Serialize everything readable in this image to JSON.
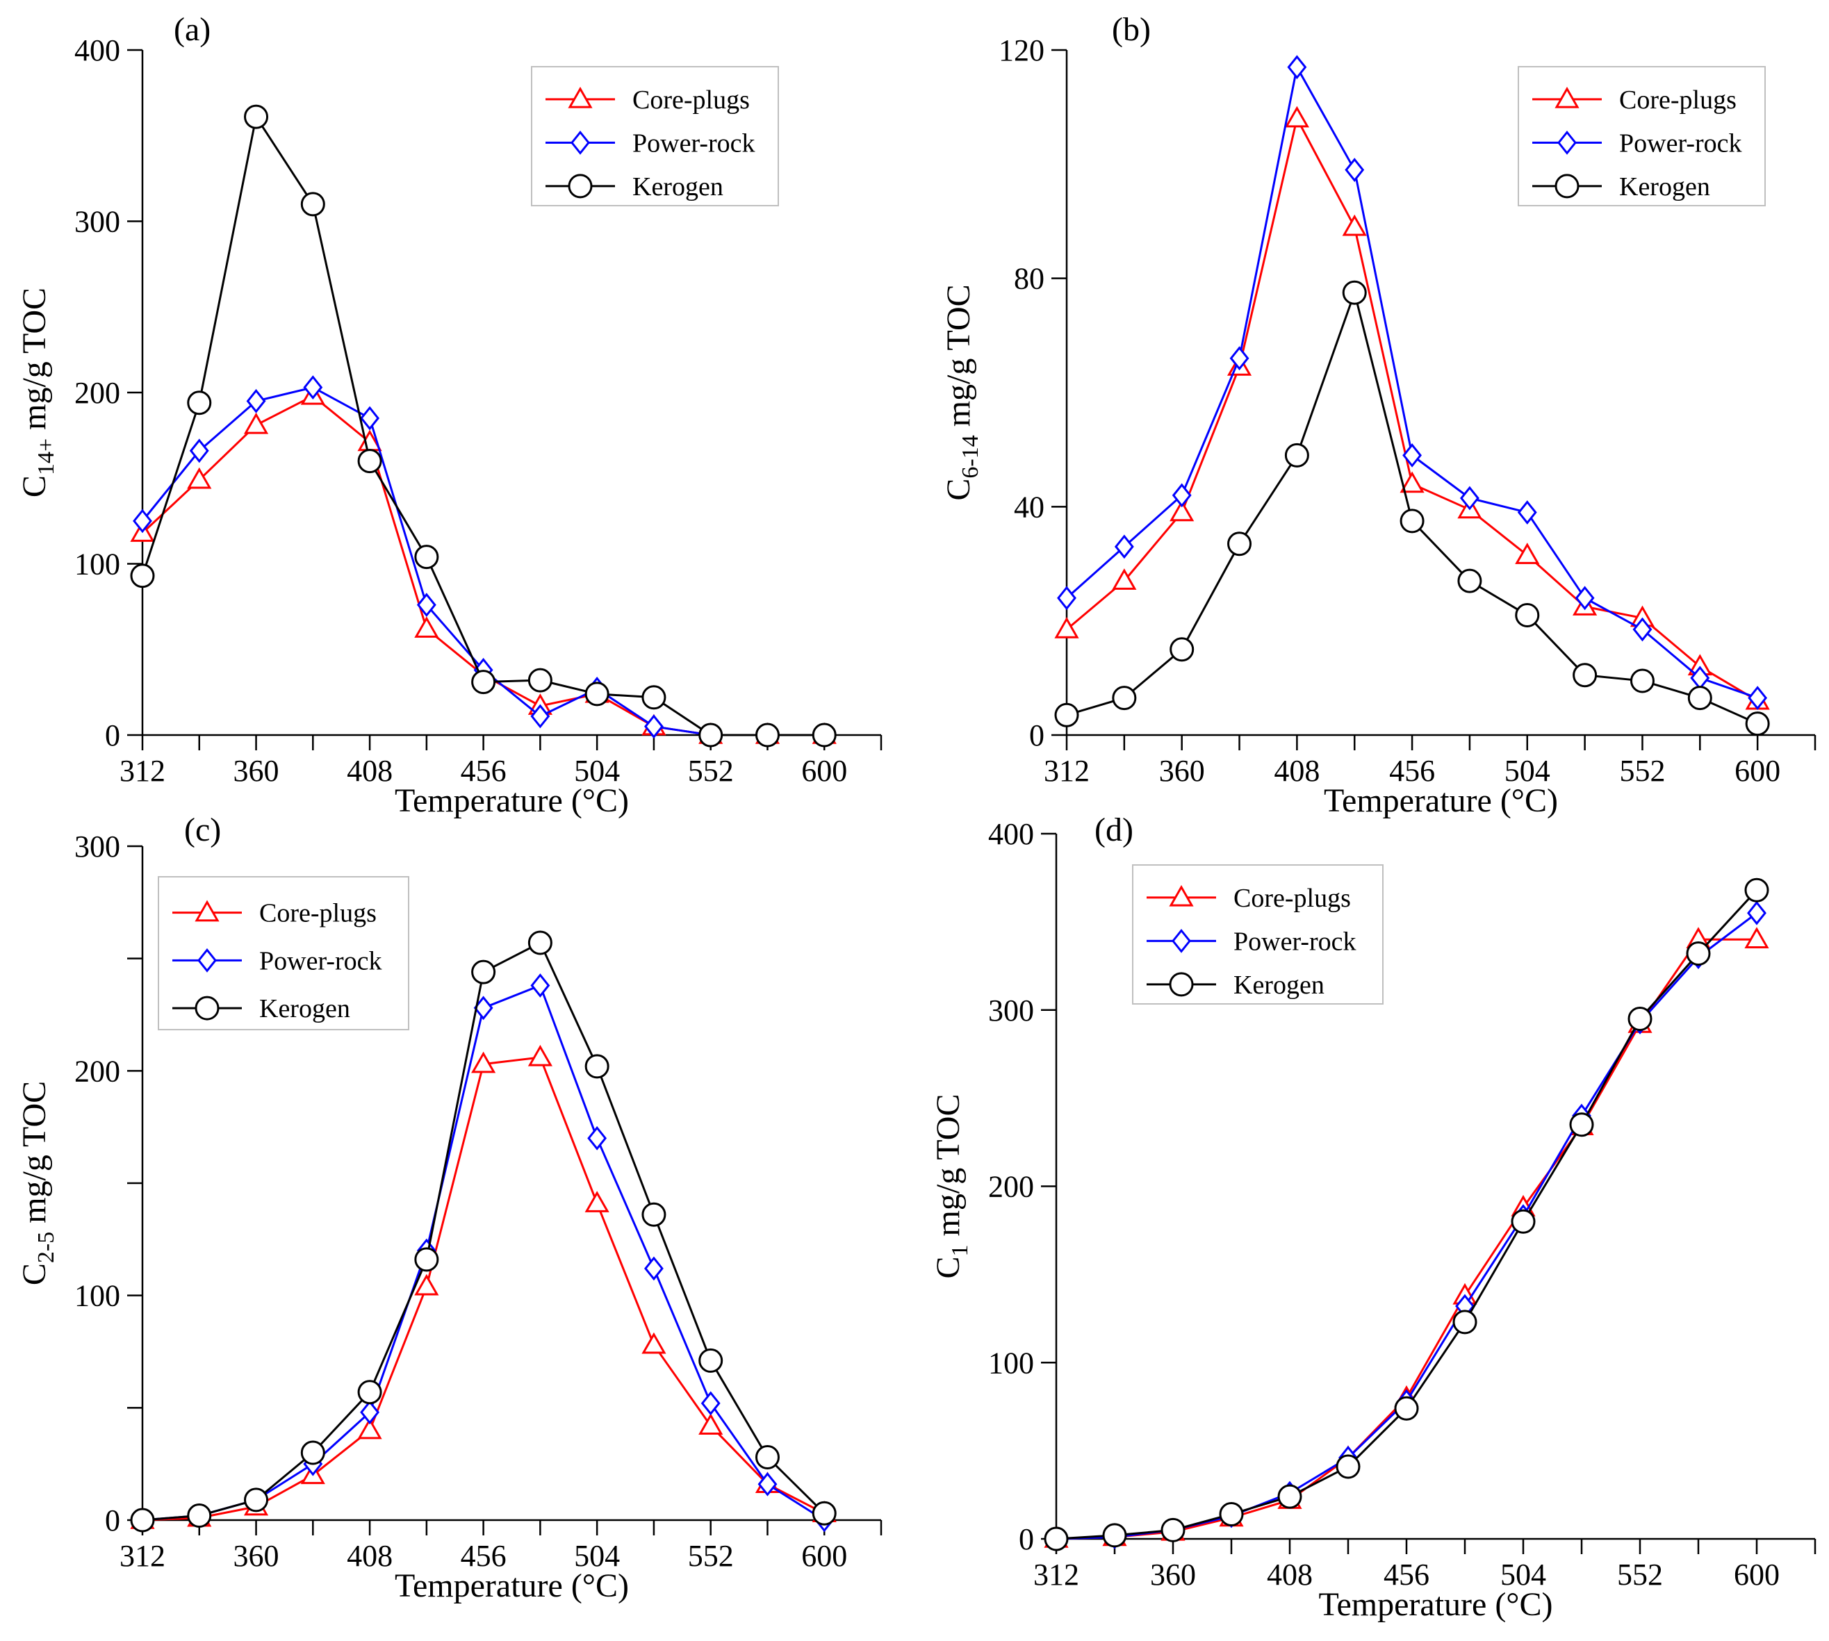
{
  "figure": {
    "colors": {
      "core_plugs": "#ff0000",
      "power_rock": "#0000ff",
      "kerogen": "#000000"
    },
    "marker_names": {
      "core_plugs": "triangle",
      "power_rock": "diamond",
      "kerogen": "circle"
    }
  },
  "chart_data": [
    {
      "panel": "(a)",
      "type": "line",
      "title": "",
      "xlabel": "Temperature (°C)",
      "ylabel": {
        "base": "C",
        "sub": "14+",
        "rest": " mg/g TOC"
      },
      "xlim": [
        312,
        624
      ],
      "ylim": [
        0,
        400
      ],
      "xticks": [
        312,
        336,
        360,
        384,
        408,
        432,
        456,
        480,
        504,
        528,
        552,
        576,
        600,
        624
      ],
      "xtick_labels": [
        "312",
        "360",
        "408",
        "456",
        "504",
        "552",
        "600"
      ],
      "xtick_label_values": [
        312,
        360,
        408,
        456,
        504,
        552,
        600
      ],
      "yticks": [
        0,
        100,
        200,
        300,
        400
      ],
      "ytick_labels": [
        "0",
        "100",
        "200",
        "300",
        "400"
      ],
      "legend_position": "top-right",
      "x": [
        312,
        336,
        360,
        384,
        408,
        432,
        456,
        480,
        504,
        528,
        552,
        576,
        600
      ],
      "series": [
        {
          "name": "Core-plugs",
          "key": "core_plugs",
          "values": [
            118,
            149,
            181,
            198,
            171,
            62,
            35,
            17,
            24,
            5,
            0,
            0,
            0
          ]
        },
        {
          "name": "Power-rock",
          "key": "power_rock",
          "values": [
            125,
            166,
            195,
            203,
            185,
            76,
            38,
            11,
            27,
            5,
            0,
            0,
            0
          ]
        },
        {
          "name": "Kerogen",
          "key": "kerogen",
          "values": [
            93,
            194,
            361,
            310,
            160,
            104,
            31,
            32,
            24,
            22,
            0,
            0,
            0
          ]
        }
      ]
    },
    {
      "panel": "(b)",
      "type": "line",
      "title": "",
      "xlabel": "Temperature (°C)",
      "ylabel": {
        "base": "C",
        "sub": "6-14",
        "rest": " mg/g TOC"
      },
      "xlim": [
        312,
        624
      ],
      "ylim": [
        0,
        120
      ],
      "xticks": [
        312,
        336,
        360,
        384,
        408,
        432,
        456,
        480,
        504,
        528,
        552,
        576,
        600,
        624
      ],
      "xtick_labels": [
        "312",
        "360",
        "408",
        "456",
        "504",
        "552",
        "600"
      ],
      "xtick_label_values": [
        312,
        360,
        408,
        456,
        504,
        552,
        600
      ],
      "yticks": [
        0,
        40,
        80,
        120
      ],
      "ytick_labels": [
        "0",
        "40",
        "80",
        "120"
      ],
      "legend_position": "top-right",
      "x": [
        312,
        336,
        360,
        384,
        408,
        432,
        456,
        480,
        504,
        528,
        552,
        576,
        600
      ],
      "series": [
        {
          "name": "Core-plugs",
          "key": "core_plugs",
          "values": [
            18.5,
            27,
            39,
            64.5,
            108,
            89,
            44,
            39.5,
            31.5,
            22.5,
            20.5,
            12,
            6
          ]
        },
        {
          "name": "Power-rock",
          "key": "power_rock",
          "values": [
            24,
            33,
            42,
            66,
            117,
            99,
            49,
            41.5,
            39,
            24,
            18.5,
            10,
            6.5
          ]
        },
        {
          "name": "Kerogen",
          "key": "kerogen",
          "values": [
            3.5,
            6.5,
            15,
            33.5,
            49,
            77.5,
            37.5,
            27,
            21,
            10.5,
            9.5,
            6.5,
            2
          ]
        }
      ]
    },
    {
      "panel": "(c)",
      "type": "line",
      "title": "",
      "xlabel": "Temperature (°C)",
      "ylabel": {
        "base": "C",
        "sub": "2-5",
        "rest": " mg/g TOC"
      },
      "xlim": [
        312,
        624
      ],
      "ylim": [
        0,
        300
      ],
      "xticks": [
        312,
        336,
        360,
        384,
        408,
        432,
        456,
        480,
        504,
        528,
        552,
        576,
        600,
        624
      ],
      "xtick_labels": [
        "312",
        "360",
        "408",
        "456",
        "504",
        "552",
        "600"
      ],
      "xtick_label_values": [
        312,
        360,
        408,
        456,
        504,
        552,
        600
      ],
      "yticks": [
        0,
        50,
        100,
        150,
        200,
        250,
        300
      ],
      "ytick_labels": [
        "0",
        "",
        "100",
        "",
        "200",
        "",
        "300"
      ],
      "legend_position": "top-left",
      "x": [
        312,
        336,
        360,
        384,
        408,
        432,
        456,
        480,
        504,
        528,
        552,
        576,
        600
      ],
      "series": [
        {
          "name": "Core-plugs",
          "key": "core_plugs",
          "values": [
            0,
            1,
            6,
            20,
            40,
            104,
            203,
            206,
            141,
            78,
            42,
            16,
            3
          ]
        },
        {
          "name": "Power-rock",
          "key": "power_rock",
          "values": [
            0,
            2,
            9,
            25,
            48,
            120,
            228,
            238,
            170,
            112,
            52,
            16,
            0
          ]
        },
        {
          "name": "Kerogen",
          "key": "kerogen",
          "values": [
            0,
            2,
            9,
            30,
            57,
            116,
            244,
            257,
            202,
            136,
            71,
            28,
            3
          ]
        }
      ]
    },
    {
      "panel": "(d)",
      "type": "line",
      "title": "",
      "xlabel": "Temperature (°C)",
      "ylabel": {
        "base": "C",
        "sub": "1",
        "rest": "  mg/g TOC"
      },
      "xlim": [
        312,
        624
      ],
      "ylim": [
        0,
        400
      ],
      "xticks": [
        312,
        336,
        360,
        384,
        408,
        432,
        456,
        480,
        504,
        528,
        552,
        576,
        600,
        624
      ],
      "xtick_labels": [
        "312",
        "360",
        "408",
        "456",
        "504",
        "552",
        "600"
      ],
      "xtick_label_values": [
        312,
        360,
        408,
        456,
        504,
        552,
        600
      ],
      "yticks": [
        0,
        100,
        200,
        300,
        400
      ],
      "ytick_labels": [
        "0",
        "100",
        "200",
        "300",
        "400"
      ],
      "legend_position": "top-left",
      "x": [
        312,
        336,
        360,
        384,
        408,
        432,
        456,
        480,
        504,
        528,
        552,
        576,
        600
      ],
      "series": [
        {
          "name": "Core-plugs",
          "key": "core_plugs",
          "values": [
            0,
            1,
            4,
            12,
            22,
            46,
            80,
            138,
            188,
            234,
            292,
            340,
            340
          ]
        },
        {
          "name": "Power-rock",
          "key": "power_rock",
          "values": [
            0,
            1,
            5,
            13,
            26,
            46,
            78,
            132,
            183,
            240,
            293,
            330,
            355
          ]
        },
        {
          "name": "Kerogen",
          "key": "kerogen",
          "values": [
            0,
            2,
            5,
            14,
            24,
            41,
            74,
            123,
            180,
            235,
            295,
            332,
            368
          ]
        }
      ]
    }
  ]
}
